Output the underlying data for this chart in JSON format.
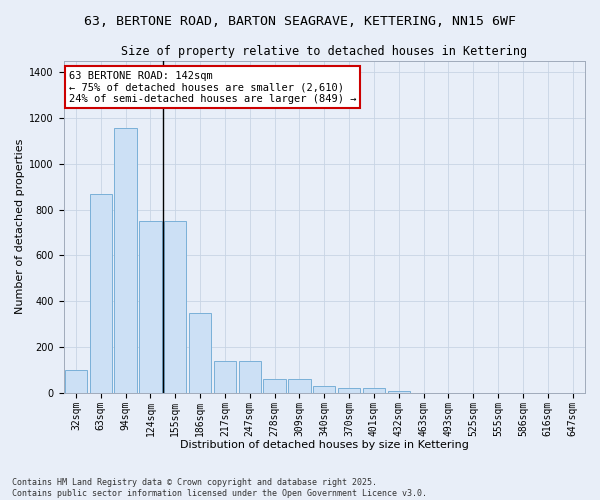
{
  "title_line1": "63, BERTONE ROAD, BARTON SEAGRAVE, KETTERING, NN15 6WF",
  "title_line2": "Size of property relative to detached houses in Kettering",
  "xlabel": "Distribution of detached houses by size in Kettering",
  "ylabel": "Number of detached properties",
  "categories": [
    "32sqm",
    "63sqm",
    "94sqm",
    "124sqm",
    "155sqm",
    "186sqm",
    "217sqm",
    "247sqm",
    "278sqm",
    "309sqm",
    "340sqm",
    "370sqm",
    "401sqm",
    "432sqm",
    "463sqm",
    "493sqm",
    "525sqm",
    "555sqm",
    "586sqm",
    "616sqm",
    "647sqm"
  ],
  "values": [
    100,
    870,
    1155,
    750,
    750,
    350,
    140,
    140,
    60,
    60,
    30,
    20,
    20,
    10,
    0,
    0,
    0,
    0,
    0,
    0,
    0
  ],
  "bar_color": "#cce0f5",
  "bar_edge_color": "#7ab0d8",
  "annotation_text": "63 BERTONE ROAD: 142sqm\n← 75% of detached houses are smaller (2,610)\n24% of semi-detached houses are larger (849) →",
  "annotation_box_color": "#ffffff",
  "annotation_box_edge_color": "#cc0000",
  "annotation_fontsize": 7.5,
  "vline_x": 3.5,
  "ylim": [
    0,
    1450
  ],
  "yticks": [
    0,
    200,
    400,
    600,
    800,
    1000,
    1200,
    1400
  ],
  "grid_color": "#c8d4e4",
  "bg_color": "#e8eef8",
  "title_fontsize": 9.5,
  "subtitle_fontsize": 8.5,
  "axis_label_fontsize": 8,
  "tick_fontsize": 7,
  "footer_text": "Contains HM Land Registry data © Crown copyright and database right 2025.\nContains public sector information licensed under the Open Government Licence v3.0."
}
